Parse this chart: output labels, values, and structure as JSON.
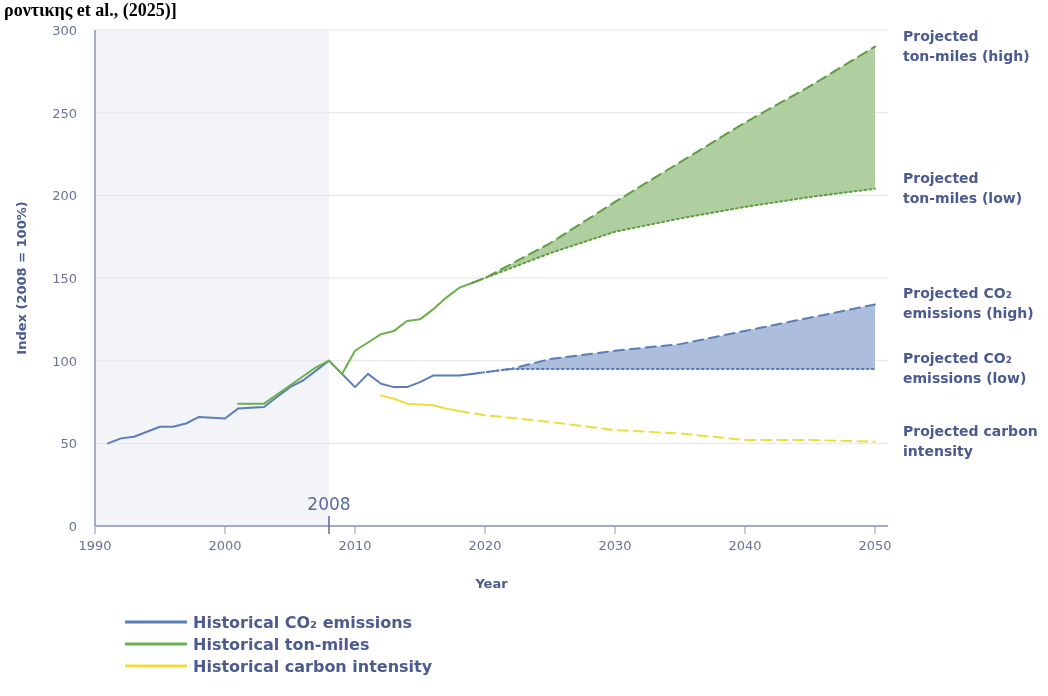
{
  "chart_data": {
    "type": "line",
    "annotations": [
      "ροντικης et al., (2025)]"
    ],
    "xlabel": "Year",
    "ylabel": "Index (2008 = 100%)",
    "xlim": [
      1990,
      2051
    ],
    "ylim": [
      0,
      300
    ],
    "xticks": [
      1990,
      2000,
      2010,
      2020,
      2030,
      2040,
      2050
    ],
    "yticks": [
      0,
      50,
      100,
      150,
      200,
      250,
      300
    ],
    "grid": "y",
    "legend": "bottom",
    "ref_lines": [
      {
        "axis": "x",
        "value": 2008,
        "label": "2008",
        "color": "#5b6a99"
      }
    ],
    "bands": [
      {
        "axis": "x",
        "from": 1990,
        "to": 2008,
        "label": null,
        "color": "#f3f4f7"
      }
    ],
    "series": [
      {
        "name": "Historical CO₂ emissions",
        "color": "#5b7db8",
        "line_style": "solid",
        "x": [
          1991,
          1992,
          1993,
          1994,
          1995,
          1996,
          1997,
          1998,
          1999,
          2000,
          2001,
          2002,
          2003,
          2004,
          2005,
          2006,
          2007,
          2008,
          2009,
          2010,
          2011,
          2012,
          2013,
          2014,
          2015,
          2016,
          2017,
          2018,
          2019
        ],
        "values": [
          50,
          53,
          54,
          57,
          60,
          60,
          62,
          66,
          65.5,
          65,
          71,
          71.5,
          72,
          78,
          84,
          88,
          94,
          100,
          92,
          84,
          92,
          86,
          84,
          84,
          87,
          91,
          91,
          91,
          92
        ]
      },
      {
        "name": "Historical ton-miles",
        "color": "#6ab04c",
        "line_style": "solid",
        "x": [
          2001,
          2003,
          2005,
          2007,
          2008,
          2009,
          2010,
          2011,
          2012,
          2013,
          2014,
          2015,
          2016,
          2017,
          2018,
          2019
        ],
        "values": [
          74,
          74,
          85,
          96,
          100,
          92,
          106,
          111,
          116,
          118,
          124,
          125,
          131,
          138,
          144,
          147
        ]
      },
      {
        "name": "Historical carbon intensity",
        "color": "#f0dc3c",
        "line_style": "solid",
        "x": [
          2012,
          2013,
          2014,
          2015,
          2016,
          2017,
          2018
        ],
        "values": [
          79,
          77,
          74,
          73.5,
          73,
          71,
          69.5
        ]
      },
      {
        "name": "Projected ton-miles (high)",
        "color": "#5e9e40",
        "line_style": "dashed",
        "x": [
          2019,
          2020,
          2025,
          2030,
          2035,
          2040,
          2045,
          2050
        ],
        "values": [
          147,
          150,
          171,
          196,
          220,
          244,
          266,
          290
        ],
        "lower": [
          147,
          150,
          165,
          178,
          186,
          193,
          199,
          204
        ],
        "upper": [
          147,
          150,
          171,
          196,
          220,
          244,
          266,
          290
        ]
      },
      {
        "name": "Projected ton-miles (low)",
        "color": "#5e9e40",
        "line_style": "dotted",
        "x": [
          2019,
          2020,
          2025,
          2030,
          2035,
          2040,
          2045,
          2050
        ],
        "values": [
          147,
          150,
          165,
          178,
          186,
          193,
          199,
          204
        ]
      },
      {
        "name": "Projected CO₂ emissions (high)",
        "color": "#5b7db8",
        "line_style": "dashed",
        "x": [
          2019,
          2022,
          2025,
          2030,
          2035,
          2040,
          2045,
          2050
        ],
        "values": [
          92,
          95,
          101,
          106,
          110,
          118,
          126,
          134
        ],
        "lower": [
          92,
          95,
          95,
          95,
          95,
          95,
          95,
          95
        ],
        "upper": [
          92,
          95,
          101,
          106,
          110,
          118,
          126,
          134
        ]
      },
      {
        "name": "Projected CO₂ emissions (low)",
        "color": "#5b7db8",
        "line_style": "dotted",
        "x": [
          2019,
          2022,
          2025,
          2030,
          2035,
          2040,
          2045,
          2050
        ],
        "values": [
          92,
          95,
          95,
          95,
          95,
          95,
          95,
          95
        ]
      },
      {
        "name": "Projected carbon intensity",
        "color": "#f0dc3c",
        "line_style": "dashed",
        "x": [
          2018,
          2020,
          2025,
          2030,
          2035,
          2040,
          2045,
          2050
        ],
        "values": [
          69.5,
          67,
          63,
          58,
          56,
          52,
          52,
          51
        ]
      }
    ]
  }
}
